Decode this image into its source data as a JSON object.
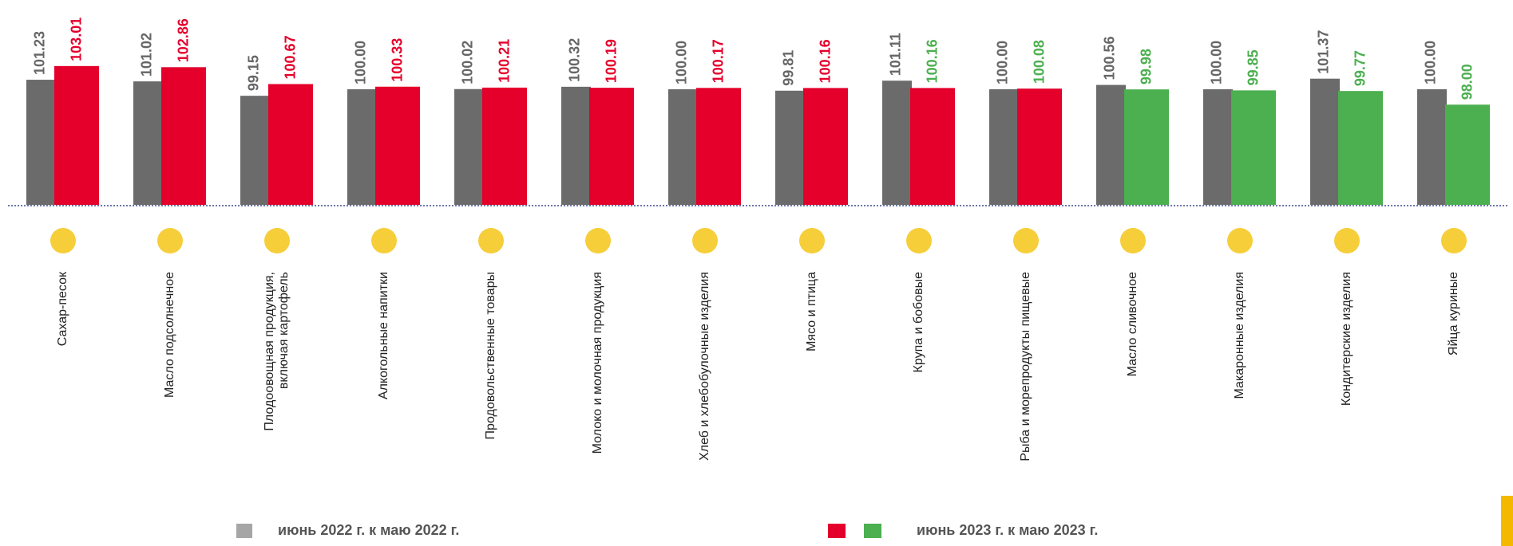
{
  "chart_data": {
    "type": "bar",
    "categories": [
      "Сахар-песок",
      "Масло подсолнечное",
      "Плодоовощная продукция,\nвключая картофель",
      "Алкогольные напитки",
      "Продовольственные товары",
      "Молоко и молочная продукция",
      "Хлеб и хлебобулочные изделия",
      "Мясо и птица",
      "Крупа и бобовые",
      "Рыба и морепродукты пищевые",
      "Масло сливочное",
      "Макаронные изделия",
      "Кондитерские изделия",
      "Яйца куриные"
    ],
    "series": [
      {
        "name": "июнь 2022 г. к маю 2022 г.",
        "color": "#6b6b6b",
        "label_color": "#666666",
        "values": [
          101.23,
          101.02,
          99.15,
          100.0,
          100.02,
          100.32,
          100.0,
          99.81,
          101.11,
          100.0,
          100.56,
          100.0,
          101.37,
          100.0
        ],
        "value_labels": [
          "101.23",
          "101.02",
          "99.15",
          "100.00",
          "100.02",
          "100.32",
          "100.00",
          "99.81",
          "101.11",
          "100.00",
          "100.56",
          "100.00",
          "101.37",
          "100.00"
        ]
      },
      {
        "name": "июнь 2023 г. к маю 2023 г.",
        "color": "#e4002b",
        "legend_colors": [
          "#e4002b",
          "#4caf50"
        ],
        "colors": [
          "#e4002b",
          "#e4002b",
          "#e4002b",
          "#e4002b",
          "#e4002b",
          "#e4002b",
          "#e4002b",
          "#e4002b",
          "#e4002b",
          "#e4002b",
          "#4caf50",
          "#4caf50",
          "#4caf50",
          "#4caf50"
        ],
        "label_colors": [
          "#e4002b",
          "#e4002b",
          "#e4002b",
          "#e4002b",
          "#e4002b",
          "#e4002b",
          "#e4002b",
          "#e4002b",
          "#4caf50",
          "#4caf50",
          "#4caf50",
          "#4caf50",
          "#4caf50",
          "#4caf50"
        ],
        "values": [
          103.01,
          102.86,
          100.67,
          100.33,
          100.21,
          100.19,
          100.17,
          100.16,
          100.16,
          100.08,
          99.98,
          99.85,
          99.77,
          98.0
        ],
        "value_labels": [
          "103.01",
          "102.86",
          "100.67",
          "100.33",
          "100.21",
          "100.19",
          "100.17",
          "100.16",
          "100.16",
          "100.08",
          "99.98",
          "99.85",
          "99.77",
          "98.00"
        ]
      }
    ],
    "ylim": [
      85,
      111.5
    ]
  }
}
